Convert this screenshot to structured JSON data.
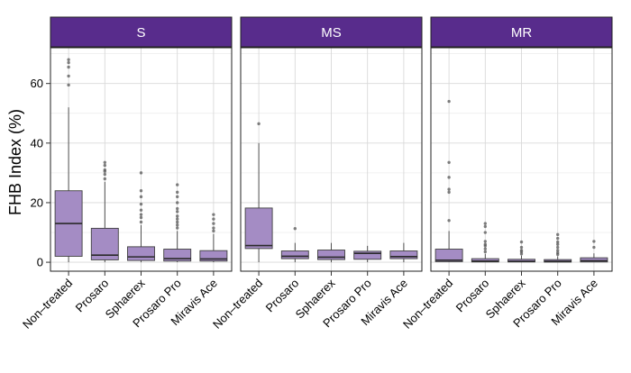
{
  "chart_data": {
    "type": "box",
    "ylabel": "FHB Index (%)",
    "xlabel": "",
    "ylim": [
      -3,
      72
    ],
    "yticks": [
      0,
      20,
      40,
      60
    ],
    "categories": [
      "Non–treated",
      "Prosaro",
      "Sphaerex",
      "Prosaro Pro",
      "Miravis Ace"
    ],
    "colors": {
      "strip": "#582c8c",
      "box_fill": "#a48cc4",
      "box_line": "#404040",
      "grid": "#d9d9d9",
      "point": "#555555"
    },
    "panels": [
      {
        "name": "S",
        "boxes": [
          {
            "category": "Non–treated",
            "min": 0,
            "q1": 2,
            "median": 13,
            "q3": 24,
            "max": 52,
            "outliers": [
              59.5,
              62.5,
              65.5,
              67,
              68
            ]
          },
          {
            "category": "Prosaro",
            "min": 0,
            "q1": 0.8,
            "median": 2.4,
            "q3": 11.4,
            "max": 27,
            "outliers": [
              28,
              29.5,
              30.5,
              31,
              32.5,
              33.5
            ]
          },
          {
            "category": "Sphaerex",
            "min": 0,
            "q1": 0.6,
            "median": 1.8,
            "q3": 5.2,
            "max": 12.5,
            "outliers": [
              13.5,
              15,
              16,
              17.5,
              19.5,
              22,
              24,
              30
            ]
          },
          {
            "category": "Prosaro Pro",
            "min": 0,
            "q1": 0.4,
            "median": 1.2,
            "q3": 4.4,
            "max": 10.5,
            "outliers": [
              11.5,
              12.5,
              13.5,
              14.5,
              15.5,
              17,
              18,
              20,
              22,
              23.5,
              26
            ]
          },
          {
            "category": "Miravis Ace",
            "min": 0,
            "q1": 0.4,
            "median": 1.1,
            "q3": 3.9,
            "max": 9.5,
            "outliers": [
              10.5,
              11.5,
              13,
              14.5,
              16
            ]
          }
        ]
      },
      {
        "name": "MS",
        "boxes": [
          {
            "category": "Non–treated",
            "min": 0,
            "q1": 4.6,
            "median": 5.6,
            "q3": 18.2,
            "max": 40,
            "outliers": [
              46.5
            ]
          },
          {
            "category": "Prosaro",
            "min": 0,
            "q1": 1.2,
            "median": 2,
            "q3": 3.8,
            "max": 6.5,
            "outliers": [
              11.3
            ]
          },
          {
            "category": "Sphaerex",
            "min": 0,
            "q1": 0.9,
            "median": 1.7,
            "q3": 4.1,
            "max": 6.5,
            "outliers": []
          },
          {
            "category": "Prosaro Pro",
            "min": 0,
            "q1": 1,
            "median": 3,
            "q3": 3.7,
            "max": 5.5,
            "outliers": []
          },
          {
            "category": "Miravis Ace",
            "min": 0,
            "q1": 1.2,
            "median": 1.9,
            "q3": 3.8,
            "max": 6.5,
            "outliers": []
          }
        ]
      },
      {
        "name": "MR",
        "boxes": [
          {
            "category": "Non–treated",
            "min": 0,
            "q1": 0.2,
            "median": 0.7,
            "q3": 4.4,
            "max": 10.5,
            "outliers": [
              14,
              23.5,
              24.5,
              28.5,
              33.5,
              54
            ]
          },
          {
            "category": "Prosaro",
            "min": 0,
            "q1": 0.1,
            "median": 0.4,
            "q3": 1.2,
            "max": 2.8,
            "outliers": [
              3.5,
              4.5,
              5.5,
              6,
              7,
              10,
              12,
              13
            ]
          },
          {
            "category": "Sphaerex",
            "min": 0,
            "q1": 0.1,
            "median": 0.3,
            "q3": 1,
            "max": 2.2,
            "outliers": [
              2.8,
              3.5,
              4,
              5,
              6.8
            ]
          },
          {
            "category": "Prosaro Pro",
            "min": 0,
            "q1": 0.05,
            "median": 0.3,
            "q3": 0.9,
            "max": 2,
            "outliers": [
              2.6,
              3.2,
              4,
              5,
              6,
              6.8,
              8,
              9.3
            ]
          },
          {
            "category": "Miravis Ace",
            "min": 0,
            "q1": 0.1,
            "median": 0.5,
            "q3": 1.5,
            "max": 3,
            "outliers": [
              5,
              7
            ]
          }
        ]
      }
    ]
  }
}
